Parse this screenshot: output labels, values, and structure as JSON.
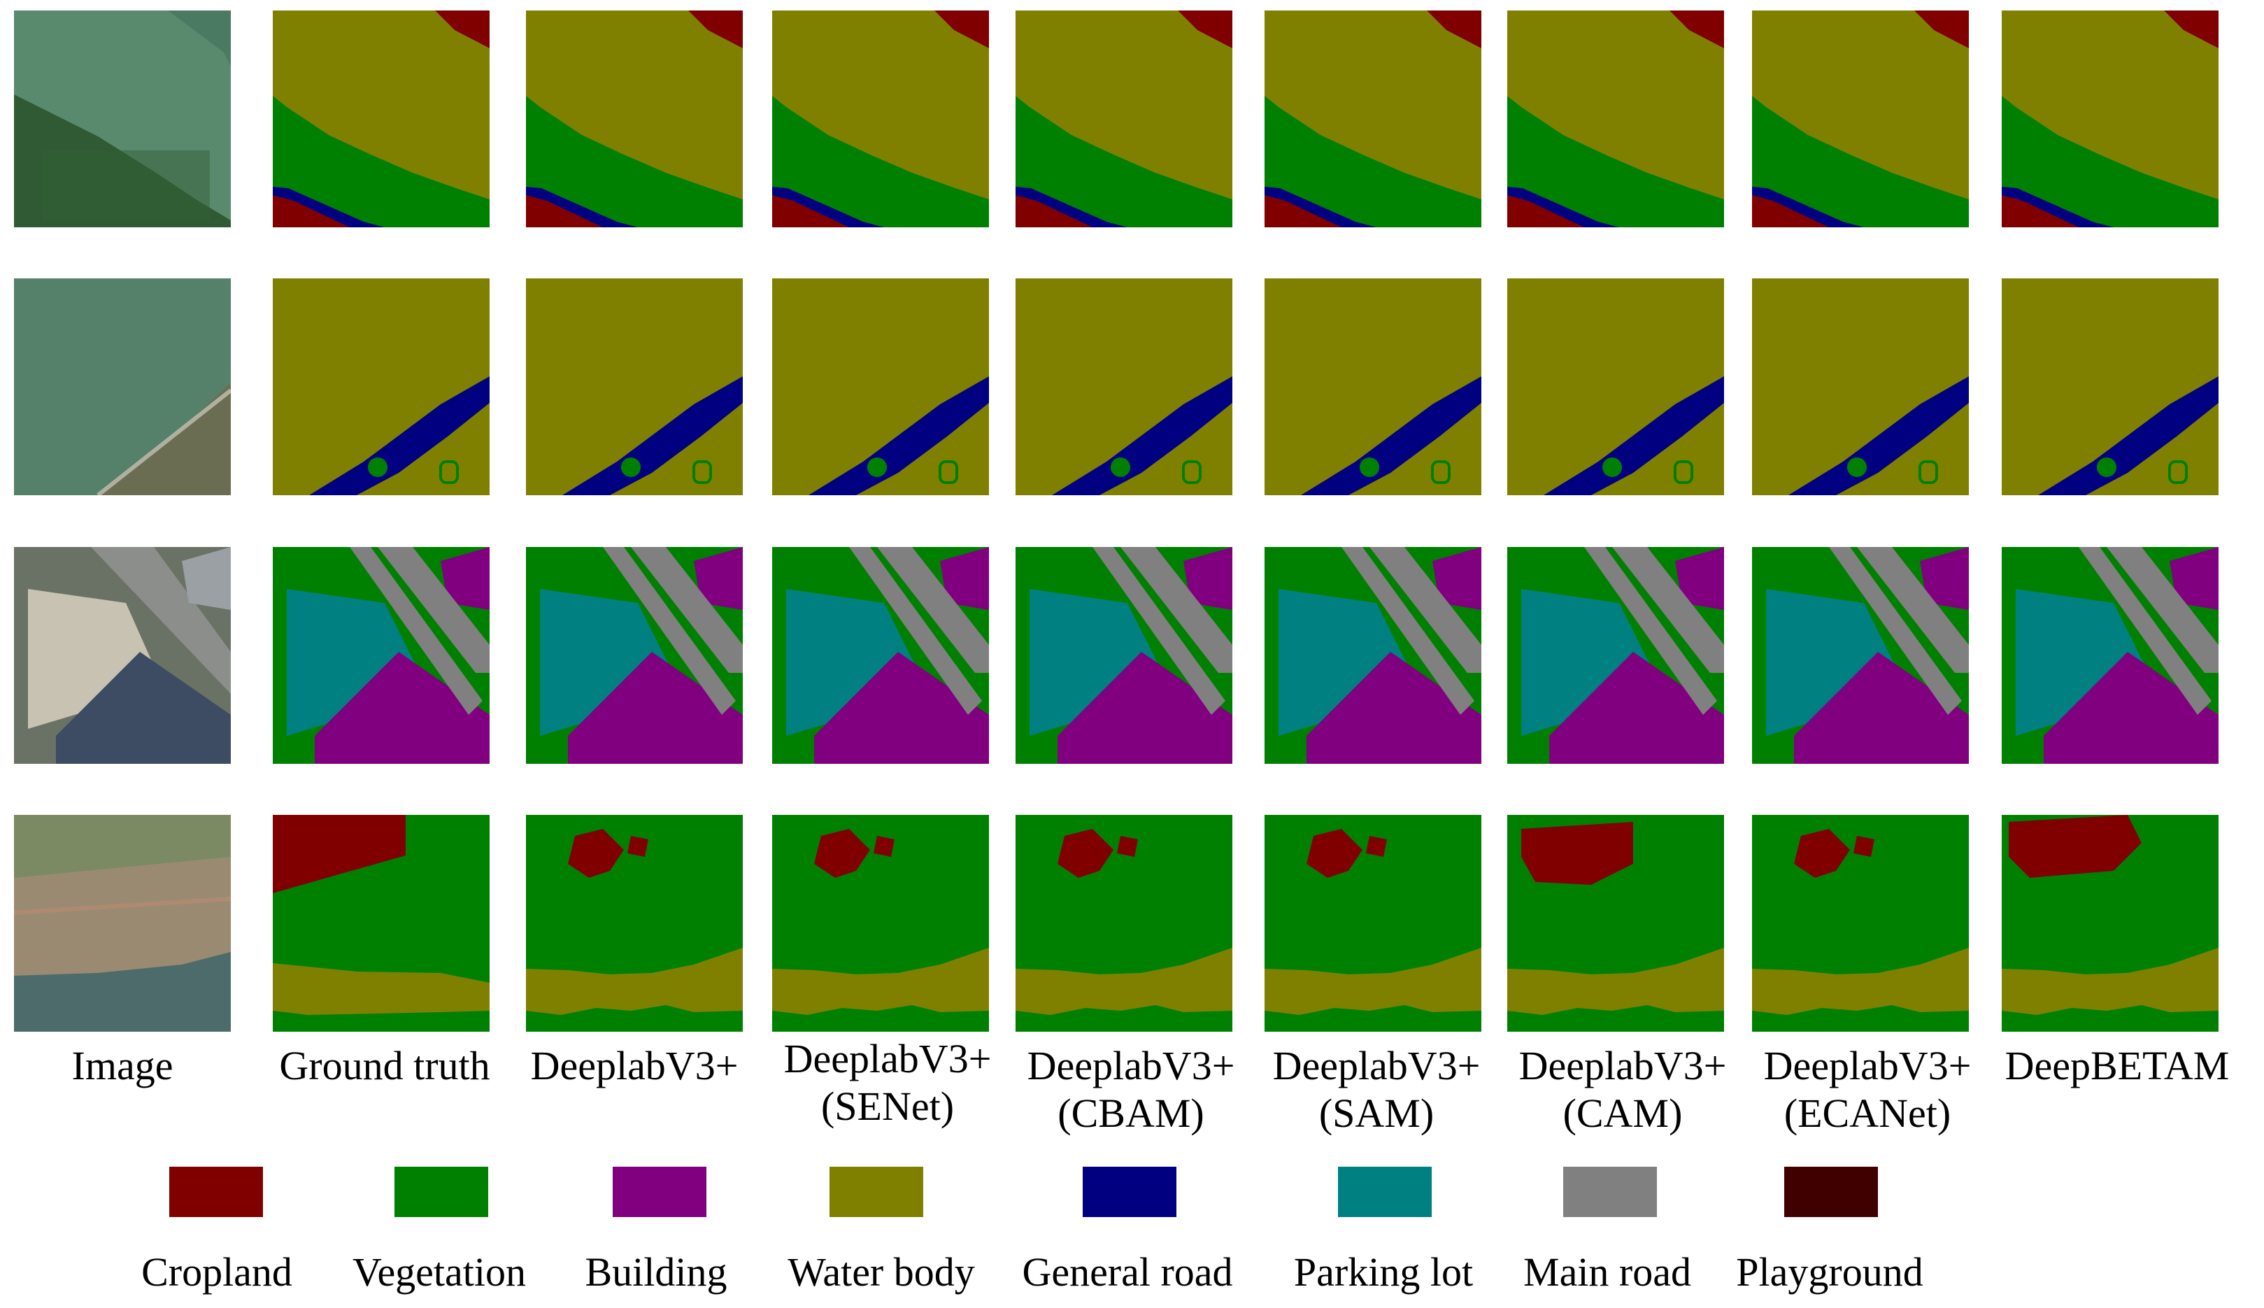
{
  "columns": [
    {
      "label": "Image"
    },
    {
      "label": "Ground truth"
    },
    {
      "label": "DeeplabV3+"
    },
    {
      "label": "DeeplabV3+\n(SENet)"
    },
    {
      "label": "DeeplabV3+\n(CBAM)"
    },
    {
      "label": "DeeplabV3+\n(SAM)"
    },
    {
      "label": "DeeplabV3+\n(CAM)"
    },
    {
      "label": "DeeplabV3+\n(ECANet)"
    },
    {
      "label": "DeepBETAM"
    }
  ],
  "legend": [
    {
      "label": "Cropland",
      "color": "#800000"
    },
    {
      "label": "Vegetation",
      "color": "#008000"
    },
    {
      "label": "Building",
      "color": "#800080"
    },
    {
      "label": "Water body",
      "color": "#808000"
    },
    {
      "label": "General road",
      "color": "#000080"
    },
    {
      "label": "Parking lot",
      "color": "#008080"
    },
    {
      "label": "Main road",
      "color": "#808080"
    },
    {
      "label": "Playground",
      "color": "#400000"
    }
  ],
  "rows": [
    {
      "scene": "river-with-vegetation-bank"
    },
    {
      "scene": "open-water-with-road"
    },
    {
      "scene": "urban-buildings-parking-roads"
    },
    {
      "scene": "vegetation-cropland-river"
    }
  ]
}
